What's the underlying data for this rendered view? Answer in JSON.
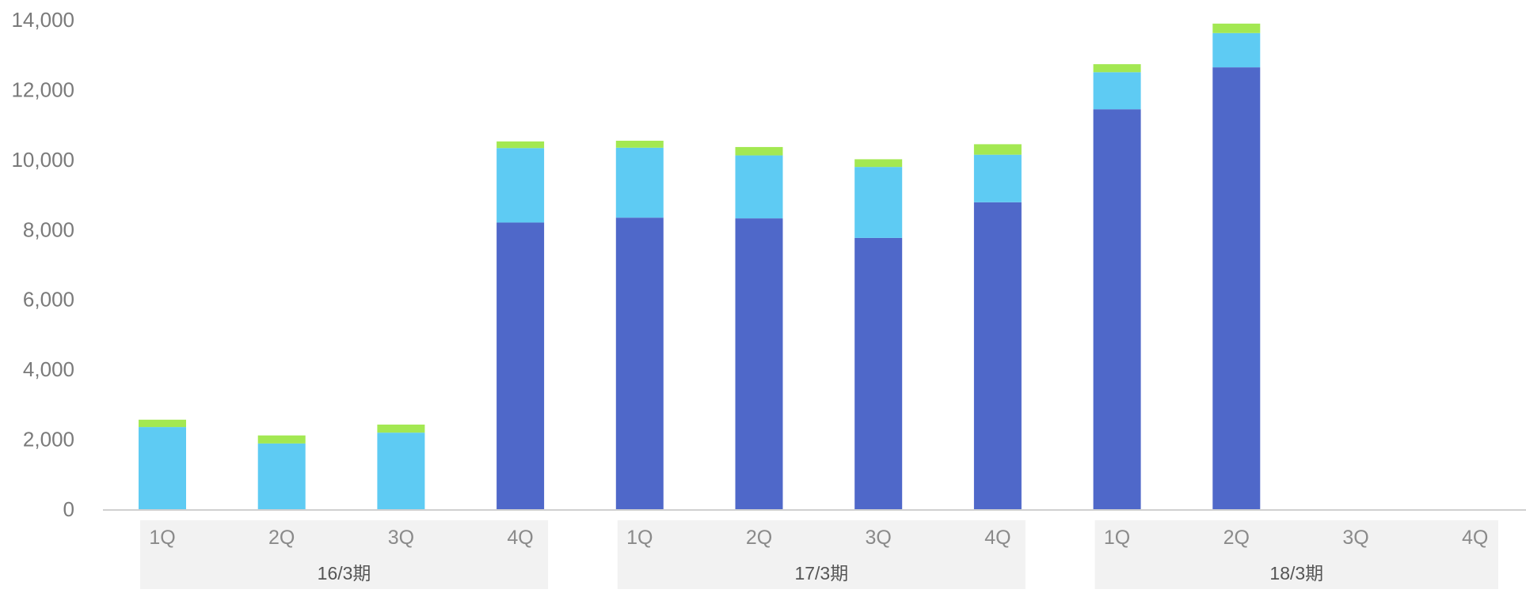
{
  "chart_data": {
    "type": "bar",
    "stacked": true,
    "title": "",
    "xlabel": "",
    "ylabel": "",
    "ylim": [
      0,
      14000
    ],
    "yticks": [
      0,
      2000,
      4000,
      6000,
      8000,
      10000,
      12000,
      14000
    ],
    "ytick_labels": [
      "0",
      "2,000",
      "4,000",
      "6,000",
      "8,000",
      "10,000",
      "12,000",
      "14,000"
    ],
    "grid": false,
    "legend": "none",
    "categories": [
      "1Q",
      "2Q",
      "3Q",
      "4Q",
      "1Q",
      "2Q",
      "3Q",
      "4Q",
      "1Q",
      "2Q",
      "3Q",
      "4Q"
    ],
    "groups": [
      {
        "label": "16/3期",
        "categories": [
          "1Q",
          "2Q",
          "3Q",
          "4Q"
        ]
      },
      {
        "label": "17/3期",
        "categories": [
          "1Q",
          "2Q",
          "3Q",
          "4Q"
        ]
      },
      {
        "label": "18/3期",
        "categories": [
          "1Q",
          "2Q",
          "3Q",
          "4Q"
        ]
      }
    ],
    "series": [
      {
        "color": "#4f68c9",
        "values": [
          0,
          0,
          0,
          8200,
          8340,
          8320,
          7760,
          8780,
          11440,
          12640,
          null,
          null
        ]
      },
      {
        "color": "#5ecbf3",
        "values": [
          2350,
          1880,
          2190,
          2130,
          2000,
          1800,
          2030,
          1360,
          1060,
          980,
          null,
          null
        ]
      },
      {
        "color": "#a3e852",
        "values": [
          210,
          230,
          230,
          190,
          200,
          240,
          220,
          300,
          230,
          270,
          null,
          null
        ]
      }
    ]
  }
}
